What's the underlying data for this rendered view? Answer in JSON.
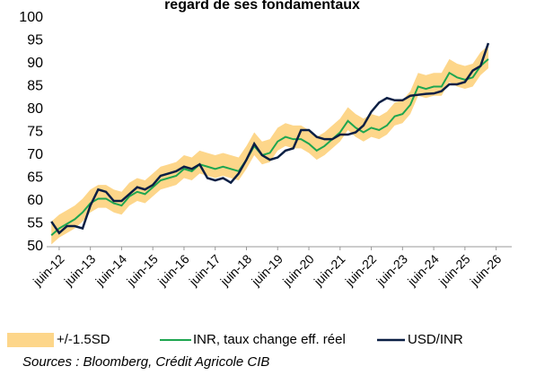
{
  "chart_data": {
    "type": "line",
    "title": "regard de ses fondamentaux",
    "source": "Sources : Bloomberg, Crédit Agricole CIB",
    "xlim": [
      2012.1,
      2027
    ],
    "ylim": [
      50,
      100
    ],
    "yticks": [
      50,
      55,
      60,
      65,
      70,
      75,
      80,
      85,
      90,
      95,
      100
    ],
    "xticks": [
      {
        "value": 2012.5,
        "label": "juin-12"
      },
      {
        "value": 2013.5,
        "label": "juin-13"
      },
      {
        "value": 2014.5,
        "label": "juin-14"
      },
      {
        "value": 2015.5,
        "label": "juin-15"
      },
      {
        "value": 2016.5,
        "label": "juin-16"
      },
      {
        "value": 2017.5,
        "label": "juin-17"
      },
      {
        "value": 2018.5,
        "label": "juin-18"
      },
      {
        "value": 2019.5,
        "label": "juin-19"
      },
      {
        "value": 2020.5,
        "label": "juin-20"
      },
      {
        "value": 2021.5,
        "label": "juin-21"
      },
      {
        "value": 2022.5,
        "label": "juin-22"
      },
      {
        "value": 2023.5,
        "label": "juin-23"
      },
      {
        "value": 2024.5,
        "label": "juin-24"
      },
      {
        "value": 2025.5,
        "label": "juin-25"
      },
      {
        "value": 2026.5,
        "label": "juin-26"
      }
    ],
    "x": [
      2012.25,
      2012.5,
      2012.75,
      2013,
      2013.25,
      2013.5,
      2013.75,
      2014,
      2014.25,
      2014.5,
      2014.75,
      2015,
      2015.25,
      2015.5,
      2015.75,
      2016,
      2016.25,
      2016.5,
      2016.75,
      2017,
      2017.25,
      2017.5,
      2017.75,
      2018,
      2018.25,
      2018.5,
      2018.75,
      2019,
      2019.25,
      2019.5,
      2019.75,
      2020,
      2020.25,
      2020.5,
      2020.75,
      2021,
      2021.25,
      2021.5,
      2021.75,
      2022,
      2022.25,
      2022.5,
      2022.75,
      2023,
      2023.25,
      2023.5,
      2023.75,
      2024,
      2024.25,
      2024.5,
      2024.75,
      2025,
      2025.25,
      2025.5,
      2025.75,
      2026,
      2026.25
    ],
    "band": {
      "name": "+/-1.5SD",
      "color": "#fdd68a",
      "upper": [
        55.5,
        57,
        58,
        59,
        60.5,
        62.5,
        63.5,
        63.5,
        62.5,
        62,
        64,
        65,
        64.5,
        66,
        67.5,
        68,
        68.5,
        70,
        69.5,
        71,
        70.5,
        70,
        70.5,
        70,
        69.5,
        72,
        75,
        73,
        73.5,
        76,
        77,
        76.5,
        76.5,
        75.5,
        74,
        75,
        76.5,
        78,
        80.5,
        79,
        78,
        79,
        78.5,
        79.5,
        81.5,
        82,
        84,
        88,
        87.5,
        88,
        88,
        91,
        90,
        89.5,
        90,
        92.5,
        94
      ],
      "lower": [
        50.5,
        52,
        53,
        54,
        55.5,
        57.5,
        58.5,
        58.5,
        57.5,
        57,
        59,
        60,
        59.5,
        61,
        62.5,
        63,
        63.5,
        65,
        64.5,
        66,
        65.5,
        65,
        65.5,
        65,
        64.5,
        67,
        70,
        68,
        68.5,
        71,
        72,
        71.5,
        71.5,
        70.5,
        69,
        70,
        71.5,
        73,
        75.5,
        74,
        73,
        74,
        73.5,
        74.5,
        76.5,
        77,
        79,
        83,
        82.5,
        83,
        83,
        86,
        85,
        84.5,
        85,
        87.5,
        89
      ]
    },
    "series": [
      {
        "name": "INR, taux change eff. réel",
        "color": "#1ea650",
        "values": [
          52.5,
          54,
          55,
          56,
          57.5,
          59.5,
          60.5,
          60.5,
          59.5,
          59,
          61,
          62,
          61.5,
          63,
          64.5,
          65,
          65.5,
          67,
          66.5,
          68,
          67.5,
          67,
          67.5,
          67,
          66.5,
          69,
          72,
          70,
          70.5,
          73,
          74,
          73.5,
          73.5,
          72.5,
          71,
          72,
          73.5,
          75,
          77.5,
          76,
          75,
          76,
          75.5,
          76.5,
          78.5,
          79,
          81,
          85,
          84.5,
          85,
          85,
          88,
          87,
          86.5,
          87,
          89.5,
          91
        ]
      },
      {
        "name": "USD/INR",
        "color": "#0b1f44",
        "values": [
          55.5,
          53,
          54.5,
          54.5,
          54,
          59,
          62.5,
          62,
          60,
          60,
          61.5,
          63,
          62.5,
          63.5,
          65.5,
          66,
          66.5,
          67.5,
          67,
          68,
          65,
          64.5,
          65,
          64,
          66,
          69,
          72.5,
          70,
          69,
          69.5,
          71,
          71.5,
          75.5,
          75.5,
          74,
          73.5,
          73.5,
          74.5,
          74.5,
          75,
          76.5,
          79.5,
          81.5,
          82.5,
          82,
          82,
          83,
          83.2,
          83.4,
          83.5,
          84,
          85.5,
          85.5,
          86,
          88.5,
          89.5,
          94.5
        ]
      }
    ]
  }
}
